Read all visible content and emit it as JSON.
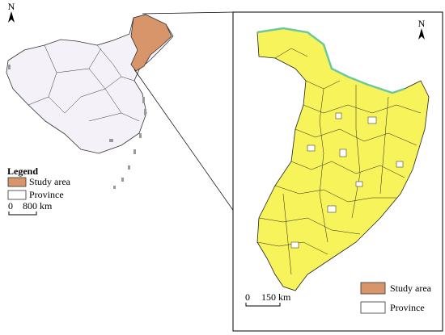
{
  "left_map": {
    "north": "N",
    "legend": {
      "title": "Legend",
      "items": [
        "Study area",
        "Province"
      ]
    },
    "scale_bar": {
      "start": "0",
      "end": "800 km"
    }
  },
  "right_map": {
    "north": "N",
    "legend": {
      "items": [
        "Study area",
        "Province"
      ]
    },
    "scale_bar": {
      "start": "0",
      "end": "150 km"
    }
  }
}
